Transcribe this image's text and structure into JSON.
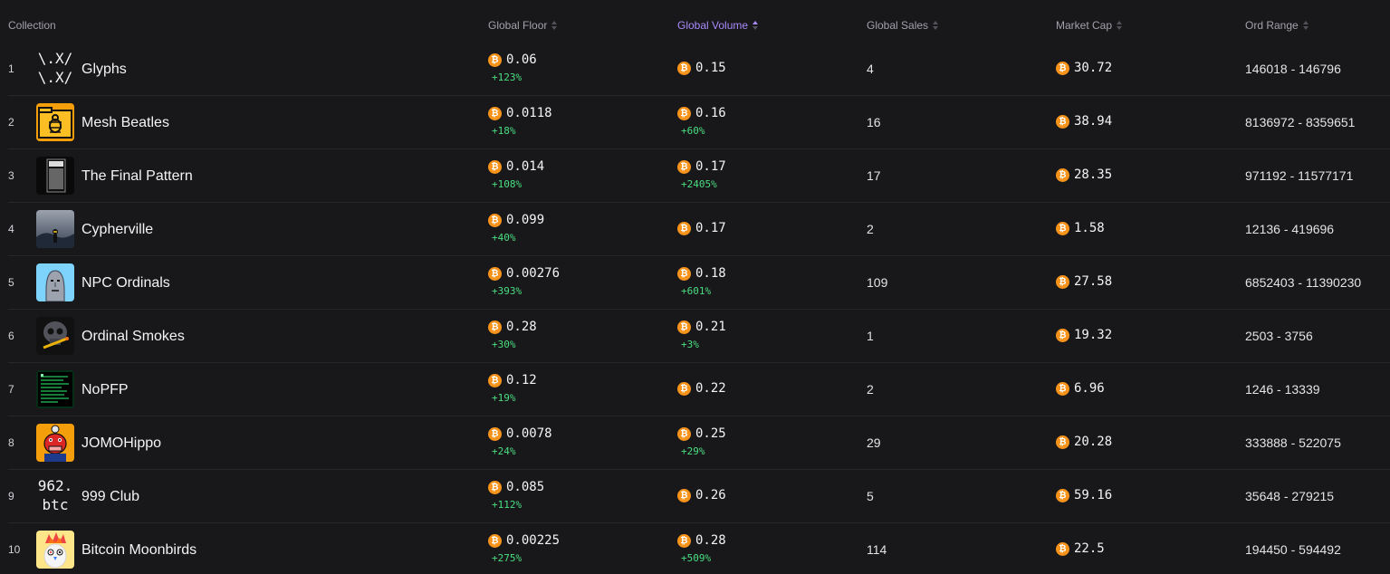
{
  "headers": {
    "collection": "Collection",
    "floor": "Global Floor",
    "volume": "Global Volume",
    "sales": "Global Sales",
    "mcap": "Market Cap",
    "range": "Ord Range"
  },
  "active_sort": "volume",
  "currency_symbol": "₿",
  "colors": {
    "btc": "#f7931a",
    "positive": "#4ade80",
    "active_header": "#a78bfa"
  },
  "rows": [
    {
      "rank": "1",
      "name": "Glyphs",
      "thumb_text": [
        "\\.X/",
        "\\.X/"
      ],
      "floor": "0.06",
      "floor_change": "+123%",
      "volume": "0.15",
      "volume_change": "",
      "sales": "4",
      "mcap": "30.72",
      "range": "146018 - 146796"
    },
    {
      "rank": "2",
      "name": "Mesh Beatles",
      "icon": "beetle-folder-icon",
      "floor": "0.0118",
      "floor_change": "+18%",
      "volume": "0.16",
      "volume_change": "+60%",
      "sales": "16",
      "mcap": "38.94",
      "range": "8136972 - 8359651"
    },
    {
      "rank": "3",
      "name": "The Final Pattern",
      "icon": "barcode-pattern-icon",
      "floor": "0.014",
      "floor_change": "+108%",
      "volume": "0.17",
      "volume_change": "+2405%",
      "sales": "17",
      "mcap": "28.35",
      "range": "971192 - 11577171"
    },
    {
      "rank": "4",
      "name": "Cypherville",
      "icon": "foggy-figure-icon",
      "floor": "0.099",
      "floor_change": "+40%",
      "volume": "0.17",
      "volume_change": "",
      "sales": "2",
      "mcap": "1.58",
      "range": "12136 - 419696"
    },
    {
      "rank": "5",
      "name": "NPC Ordinals",
      "icon": "npc-face-icon",
      "floor": "0.00276",
      "floor_change": "+393%",
      "volume": "0.18",
      "volume_change": "+601%",
      "sales": "109",
      "mcap": "27.58",
      "range": "6852403 - 11390230"
    },
    {
      "rank": "6",
      "name": "Ordinal Smokes",
      "icon": "skull-smoke-icon",
      "floor": "0.28",
      "floor_change": "+30%",
      "volume": "0.21",
      "volume_change": "+3%",
      "sales": "1",
      "mcap": "19.32",
      "range": "2503 - 3756"
    },
    {
      "rank": "7",
      "name": "NoPFP",
      "icon": "terminal-text-icon",
      "floor": "0.12",
      "floor_change": "+19%",
      "volume": "0.22",
      "volume_change": "",
      "sales": "2",
      "mcap": "6.96",
      "range": "1246 - 13339"
    },
    {
      "rank": "8",
      "name": "JOMOHippo",
      "icon": "hippo-avatar-icon",
      "floor": "0.0078",
      "floor_change": "+24%",
      "volume": "0.25",
      "volume_change": "+29%",
      "sales": "29",
      "mcap": "20.28",
      "range": "333888 - 522075"
    },
    {
      "rank": "9",
      "name": "999 Club",
      "thumb_text": [
        "962.",
        "btc"
      ],
      "floor": "0.085",
      "floor_change": "+112%",
      "volume": "0.26",
      "volume_change": "",
      "sales": "5",
      "mcap": "59.16",
      "range": "35648 - 279215"
    },
    {
      "rank": "10",
      "name": "Bitcoin Moonbirds",
      "icon": "moonbird-avatar-icon",
      "floor": "0.00225",
      "floor_change": "+275%",
      "volume": "0.28",
      "volume_change": "+509%",
      "sales": "114",
      "mcap": "22.5",
      "range": "194450 - 594492"
    }
  ]
}
